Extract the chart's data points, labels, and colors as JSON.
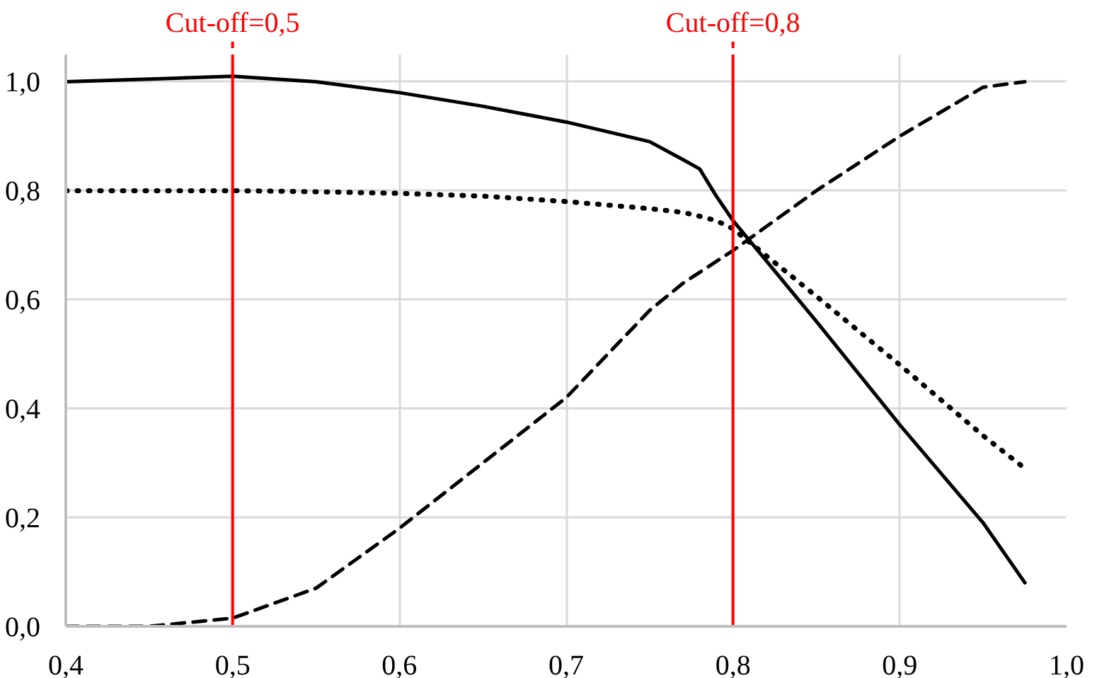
{
  "chart_data": {
    "type": "line",
    "x": [
      0.4,
      0.45,
      0.5,
      0.55,
      0.6,
      0.65,
      0.7,
      0.75,
      0.77,
      0.78,
      0.79,
      0.8,
      0.85,
      0.9,
      0.95,
      0.975
    ],
    "series": [
      {
        "color": "#000000",
        "line_style": "solid",
        "values": [
          1.0,
          1.005,
          1.01,
          1.0,
          0.98,
          0.955,
          0.926,
          0.89,
          0.857,
          0.84,
          0.79,
          0.745,
          0.56,
          0.37,
          0.19,
          0.08
        ]
      },
      {
        "color": "#000000",
        "line_style": "dotted",
        "values": [
          0.8,
          0.8,
          0.8,
          0.798,
          0.795,
          0.79,
          0.78,
          0.767,
          0.76,
          0.753,
          0.745,
          0.73,
          0.606,
          0.48,
          0.35,
          0.29
        ]
      },
      {
        "color": "#000000",
        "line_style": "dashed",
        "values": [
          0.0,
          0.0,
          0.015,
          0.07,
          0.18,
          0.3,
          0.42,
          0.58,
          0.63,
          0.65,
          0.67,
          0.69,
          0.8,
          0.9,
          0.99,
          1.0
        ]
      }
    ],
    "xlim": [
      0.4,
      1.0
    ],
    "ylim": [
      0,
      1.05
    ],
    "xticks": [
      {
        "value": 0.4,
        "label": "0,4"
      },
      {
        "value": 0.5,
        "label": "0,5"
      },
      {
        "value": 0.6,
        "label": "0,6"
      },
      {
        "value": 0.7,
        "label": "0,7"
      },
      {
        "value": 0.8,
        "label": "0,8"
      },
      {
        "value": 0.9,
        "label": "0,9"
      },
      {
        "value": 1.0,
        "label": "1,0"
      }
    ],
    "yticks": [
      {
        "value": 0,
        "label": "0,0"
      },
      {
        "value": 0.2,
        "label": "0,2"
      },
      {
        "value": 0.4,
        "label": "0,4"
      },
      {
        "value": 0.6,
        "label": "0,6"
      },
      {
        "value": 0.8,
        "label": "0,8"
      },
      {
        "value": 1.0,
        "label": "1,0"
      }
    ],
    "ref_lines": [
      {
        "axis": "x",
        "value": 0.5,
        "label": "Cut-off=0,5",
        "color": "#ff0000"
      },
      {
        "axis": "x",
        "value": 0.8,
        "label": "Cut-off=0,8",
        "color": "#ff0000"
      }
    ],
    "grid": true,
    "marker": "none"
  }
}
